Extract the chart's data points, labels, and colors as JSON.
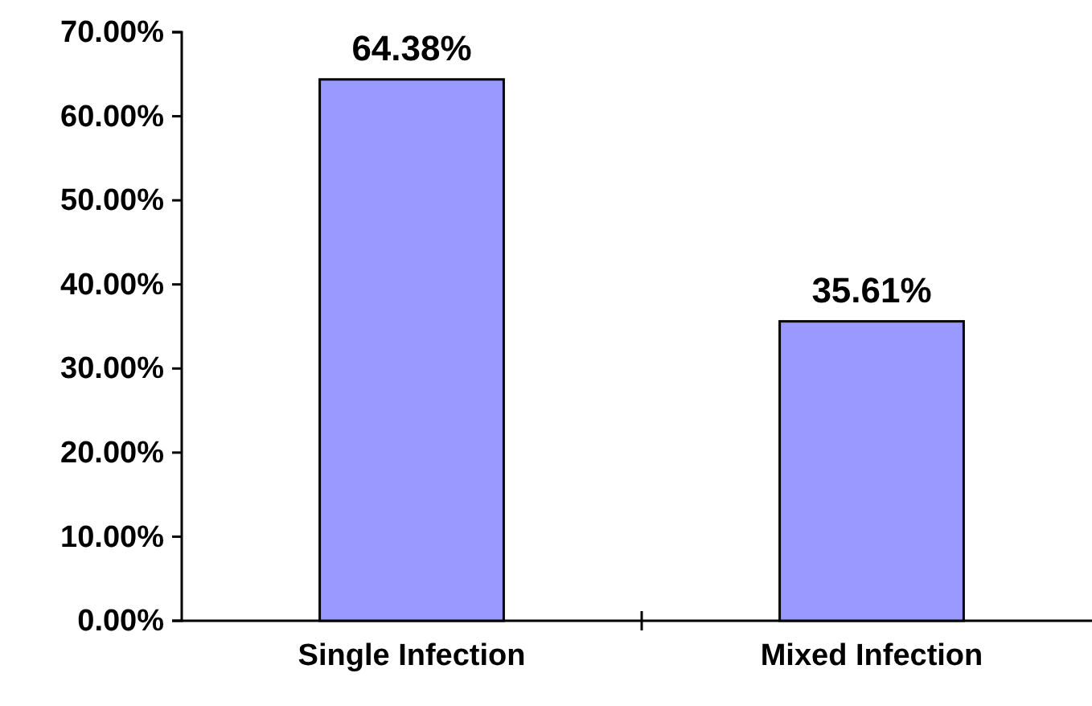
{
  "chart_data": {
    "type": "bar",
    "categories": [
      "Single Infection",
      "Mixed Infection"
    ],
    "values": [
      64.38,
      35.61
    ],
    "color": "#9999ff",
    "value_labels": [
      "64.38%",
      "35.61%"
    ],
    "ylim": [
      0,
      70
    ],
    "yticks": [
      {
        "value": 0,
        "label": "0.00%"
      },
      {
        "value": 10,
        "label": "10.00%"
      },
      {
        "value": 20,
        "label": "20.00%"
      },
      {
        "value": 30,
        "label": "30.00%"
      },
      {
        "value": 40,
        "label": "40.00%"
      },
      {
        "value": 50,
        "label": "50.00%"
      },
      {
        "value": 60,
        "label": "60.00%"
      },
      {
        "value": 70,
        "label": "70.00%"
      }
    ]
  }
}
